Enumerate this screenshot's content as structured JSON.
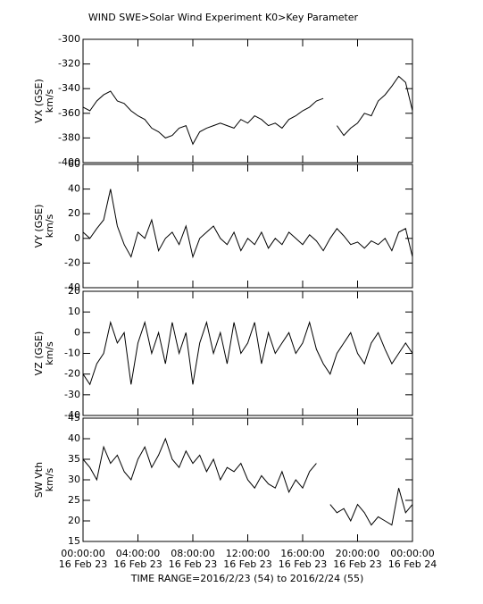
{
  "chart_data": [
    {
      "type": "line",
      "title": "WIND  SWE>Solar Wind Experiment  K0>Key Parameter",
      "ylabel": "VX (GSE)",
      "yunit": "km/s",
      "x": [
        0,
        0.5,
        1,
        1.5,
        2,
        2.5,
        3,
        3.5,
        4,
        4.5,
        5,
        5.5,
        6,
        6.5,
        7,
        7.5,
        8,
        8.5,
        9,
        9.5,
        10,
        10.5,
        11,
        11.5,
        12,
        12.5,
        13,
        13.5,
        14,
        14.5,
        15,
        15.5,
        16,
        16.5,
        17,
        17.5,
        18,
        18.5,
        19,
        19.5,
        20,
        20.5,
        21,
        21.5,
        22,
        22.5,
        23,
        23.5,
        24
      ],
      "values": [
        -355,
        -358,
        -350,
        -345,
        -342,
        -350,
        -352,
        -358,
        -362,
        -365,
        -372,
        -375,
        -380,
        -378,
        -372,
        -370,
        -385,
        -375,
        -372,
        -370,
        -368,
        -370,
        -372,
        -365,
        -368,
        -362,
        -365,
        -370,
        -368,
        -372,
        -365,
        -362,
        -358,
        -355,
        -350,
        -348,
        null,
        -370,
        -378,
        -372,
        -368,
        -360,
        -362,
        -350,
        -345,
        -338,
        -330,
        -335,
        -358
      ],
      "xlim": [
        0,
        24
      ],
      "xticks": [
        0,
        4,
        8,
        12,
        16,
        20,
        24
      ],
      "ylim": [
        -400,
        -300
      ],
      "yticks": [
        -400,
        -380,
        -360,
        -340,
        -320,
        -300
      ]
    },
    {
      "type": "line",
      "ylabel": "VY (GSE)",
      "yunit": "km/s",
      "x": [
        0,
        0.5,
        1,
        1.5,
        2,
        2.5,
        3,
        3.5,
        4,
        4.5,
        5,
        5.5,
        6,
        6.5,
        7,
        7.5,
        8,
        8.5,
        9,
        9.5,
        10,
        10.5,
        11,
        11.5,
        12,
        12.5,
        13,
        13.5,
        14,
        14.5,
        15,
        15.5,
        16,
        16.5,
        17,
        17.5,
        18,
        18.5,
        19,
        19.5,
        20,
        20.5,
        21,
        21.5,
        22,
        22.5,
        23,
        23.5,
        24
      ],
      "values": [
        5,
        0,
        8,
        15,
        40,
        10,
        -5,
        -15,
        5,
        0,
        15,
        -10,
        0,
        5,
        -5,
        10,
        -15,
        0,
        5,
        10,
        0,
        -5,
        5,
        -10,
        0,
        -5,
        5,
        -8,
        0,
        -5,
        5,
        0,
        -5,
        3,
        -2,
        -10,
        0,
        8,
        2,
        -5,
        -3,
        -8,
        -2,
        -5,
        0,
        -10,
        5,
        8,
        -15
      ],
      "xlim": [
        0,
        24
      ],
      "xticks": [
        0,
        4,
        8,
        12,
        16,
        20,
        24
      ],
      "ylim": [
        -40,
        60
      ],
      "yticks": [
        -40,
        -20,
        0,
        20,
        40,
        60
      ]
    },
    {
      "type": "line",
      "ylabel": "VZ (GSE)",
      "yunit": "km/s",
      "x": [
        0,
        0.5,
        1,
        1.5,
        2,
        2.5,
        3,
        3.5,
        4,
        4.5,
        5,
        5.5,
        6,
        6.5,
        7,
        7.5,
        8,
        8.5,
        9,
        9.5,
        10,
        10.5,
        11,
        11.5,
        12,
        12.5,
        13,
        13.5,
        14,
        14.5,
        15,
        15.5,
        16,
        16.5,
        17,
        17.5,
        18,
        18.5,
        19,
        19.5,
        20,
        20.5,
        21,
        21.5,
        22,
        22.5,
        23,
        23.5,
        24
      ],
      "values": [
        -20,
        -25,
        -15,
        -10,
        5,
        -5,
        0,
        -25,
        -5,
        5,
        -10,
        0,
        -15,
        5,
        -10,
        0,
        -25,
        -5,
        5,
        -10,
        0,
        -15,
        5,
        -10,
        -5,
        5,
        -15,
        0,
        -10,
        -5,
        0,
        -10,
        -5,
        5,
        -8,
        -15,
        -20,
        -10,
        -5,
        0,
        -10,
        -15,
        -5,
        0,
        -8,
        -15,
        -10,
        -5,
        -10
      ],
      "xlim": [
        0,
        24
      ],
      "xticks": [
        0,
        4,
        8,
        12,
        16,
        20,
        24
      ],
      "ylim": [
        -40,
        20
      ],
      "yticks": [
        -40,
        -30,
        -20,
        -10,
        0,
        10,
        20
      ]
    },
    {
      "type": "line",
      "ylabel": "SW Vth",
      "yunit": "km/s",
      "x": [
        0,
        0.5,
        1,
        1.5,
        2,
        2.5,
        3,
        3.5,
        4,
        4.5,
        5,
        5.5,
        6,
        6.5,
        7,
        7.5,
        8,
        8.5,
        9,
        9.5,
        10,
        10.5,
        11,
        11.5,
        12,
        12.5,
        13,
        13.5,
        14,
        14.5,
        15,
        15.5,
        16,
        16.5,
        17,
        17.5,
        18,
        18.5,
        19,
        19.5,
        20,
        20.5,
        21,
        21.5,
        22,
        22.5,
        23,
        23.5,
        24
      ],
      "values": [
        35,
        33,
        30,
        38,
        34,
        36,
        32,
        30,
        35,
        38,
        33,
        36,
        40,
        35,
        33,
        37,
        34,
        36,
        32,
        35,
        30,
        33,
        32,
        34,
        30,
        28,
        31,
        29,
        28,
        32,
        27,
        30,
        28,
        32,
        34,
        null,
        24,
        22,
        23,
        20,
        24,
        22,
        19,
        21,
        20,
        19,
        28,
        22,
        24
      ],
      "xlim": [
        0,
        24
      ],
      "xticks": [
        {
          "value": 0,
          "label": "00:00:00"
        },
        {
          "value": 4,
          "label": "04:00:00"
        },
        {
          "value": 8,
          "label": "08:00:00"
        },
        {
          "value": 12,
          "label": "12:00:00"
        },
        {
          "value": 16,
          "label": "16:00:00"
        },
        {
          "value": 20,
          "label": "20:00:00"
        },
        {
          "value": 24,
          "label": "00:00:00"
        }
      ],
      "xtick_dates": [
        "16 Feb 23",
        "16 Feb 23",
        "16 Feb 23",
        "16 Feb 23",
        "16 Feb 23",
        "16 Feb 23",
        "16 Feb 24"
      ],
      "xlabel": "TIME RANGE=2016/2/23 (54) to 2016/2/24 (55)",
      "ylim": [
        15,
        45
      ],
      "yticks": [
        15,
        20,
        25,
        30,
        35,
        40,
        45
      ]
    }
  ]
}
